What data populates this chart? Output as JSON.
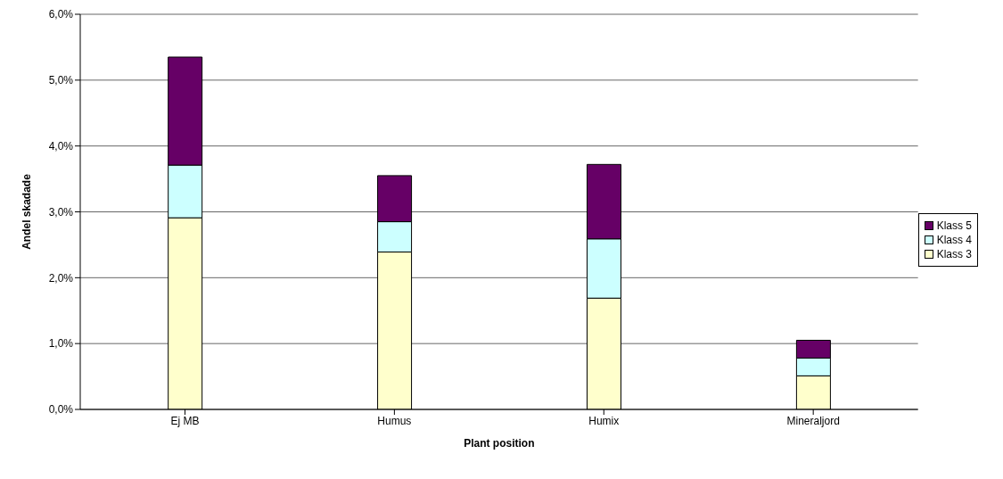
{
  "chart_data": {
    "type": "bar",
    "stacked": true,
    "xlabel": "Plant position",
    "ylabel": "Andel skadade",
    "categories": [
      "Ej MB",
      "Humus",
      "Humix",
      "Mineraljord"
    ],
    "series": [
      {
        "name": "Klass 3",
        "color": "#ffffcc",
        "values": [
          2.91,
          2.39,
          1.69,
          0.51
        ]
      },
      {
        "name": "Klass 4",
        "color": "#ccffff",
        "values": [
          0.8,
          0.46,
          0.9,
          0.27
        ]
      },
      {
        "name": "Klass 5",
        "color": "#660066",
        "values": [
          1.64,
          0.7,
          1.13,
          0.27
        ]
      }
    ],
    "ylim": [
      0,
      6
    ],
    "yticks": [
      {
        "value": 0,
        "label": "0,0%"
      },
      {
        "value": 1,
        "label": "1,0%"
      },
      {
        "value": 2,
        "label": "2,0%"
      },
      {
        "value": 3,
        "label": "3,0%"
      },
      {
        "value": 4,
        "label": "4,0%"
      },
      {
        "value": 5,
        "label": "5,0%"
      },
      {
        "value": 6,
        "label": "6,0%"
      }
    ],
    "grid": "y",
    "legend": "right"
  }
}
